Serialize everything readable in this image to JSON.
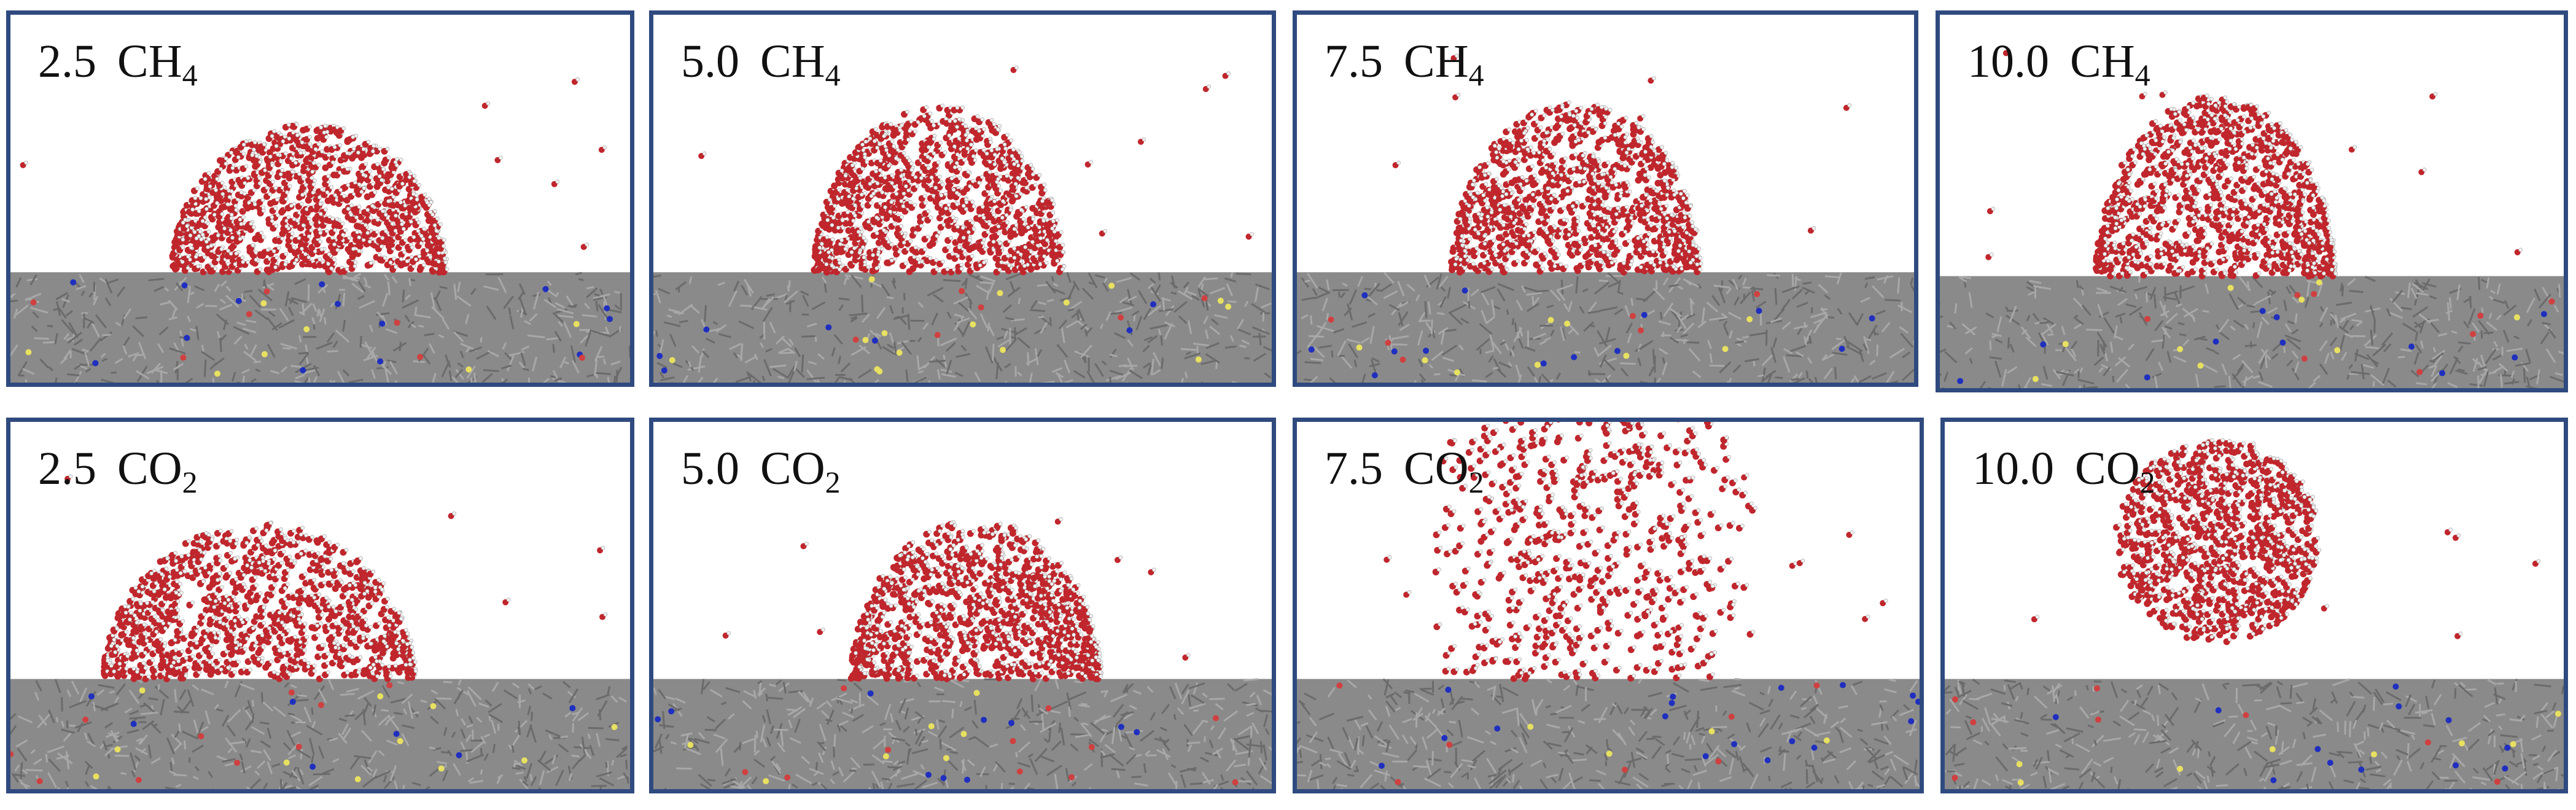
{
  "panels": [
    {
      "value": "2.5",
      "gas": "CH",
      "sub": "4",
      "shape": "dome",
      "cx": 0.48,
      "w": 0.44,
      "h": 0.4,
      "detach": 0.0
    },
    {
      "value": "5.0",
      "gas": "CH",
      "sub": "4",
      "shape": "dome",
      "cx": 0.46,
      "w": 0.4,
      "h": 0.45,
      "detach": 0.0
    },
    {
      "value": "7.5",
      "gas": "CH",
      "sub": "4",
      "shape": "dome",
      "cx": 0.45,
      "w": 0.4,
      "h": 0.46,
      "detach": 0.0
    },
    {
      "value": "10.0",
      "gas": "CH",
      "sub": "4",
      "shape": "dome",
      "cx": 0.44,
      "w": 0.38,
      "h": 0.48,
      "detach": 0.0
    },
    {
      "value": "2.5",
      "gas": "CO",
      "sub": "2",
      "shape": "dome",
      "cx": 0.4,
      "w": 0.5,
      "h": 0.42,
      "detach": 0.0
    },
    {
      "value": "5.0",
      "gas": "CO",
      "sub": "2",
      "shape": "dome",
      "cx": 0.52,
      "w": 0.4,
      "h": 0.43,
      "detach": 0.0
    },
    {
      "value": "7.5",
      "gas": "CO",
      "sub": "2",
      "shape": "spread",
      "cx": 0.47,
      "w": 0.45,
      "h": 0.7,
      "detach": 0.0
    },
    {
      "value": "10.0",
      "gas": "CO",
      "sub": "2",
      "shape": "sphere",
      "cx": 0.44,
      "w": 0.33,
      "h": 0.55,
      "detach": 0.1
    }
  ],
  "colors": {
    "frame": "#2f4a7f",
    "water_oxygen": "#c0262c",
    "water_hydrogen": "#f2f2f2",
    "substrate": "#8a8a8a",
    "substrate_dark": "#6b6b6b",
    "dopant_blue": "#1f2fbf",
    "dopant_yellow": "#e8e060",
    "dopant_red": "#d04040"
  }
}
